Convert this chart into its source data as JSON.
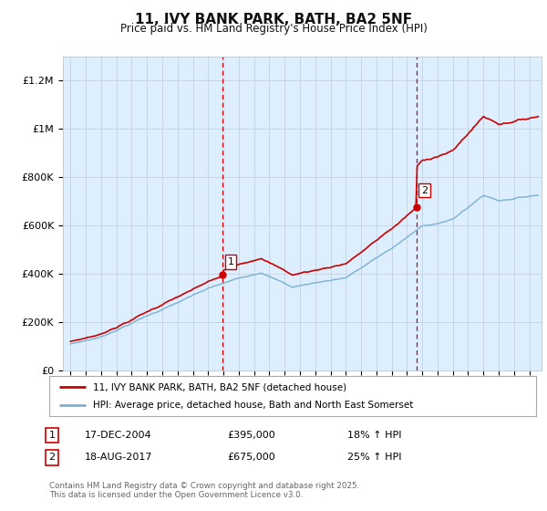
{
  "title1": "11, IVY BANK PARK, BATH, BA2 5NF",
  "title2": "Price paid vs. HM Land Registry's House Price Index (HPI)",
  "ylim": [
    0,
    1300000
  ],
  "yticks": [
    0,
    200000,
    400000,
    600000,
    800000,
    1000000,
    1200000
  ],
  "ytick_labels": [
    "£0",
    "£200K",
    "£400K",
    "£600K",
    "£800K",
    "£1M",
    "£1.2M"
  ],
  "xlim_left": 1994.5,
  "xlim_right": 2025.8,
  "sale1_year": 2004.96,
  "sale1_price": 395000,
  "sale2_year": 2017.63,
  "sale2_price": 675000,
  "legend_line1": "11, IVY BANK PARK, BATH, BA2 5NF (detached house)",
  "legend_line2": "HPI: Average price, detached house, Bath and North East Somerset",
  "annotation1_label": "1",
  "annotation1_date": "17-DEC-2004",
  "annotation1_price": "£395,000",
  "annotation1_hpi": "18% ↑ HPI",
  "annotation2_label": "2",
  "annotation2_date": "18-AUG-2017",
  "annotation2_price": "£675,000",
  "annotation2_hpi": "25% ↑ HPI",
  "footer": "Contains HM Land Registry data © Crown copyright and database right 2025.\nThis data is licensed under the Open Government Licence v3.0.",
  "line1_color": "#cc0000",
  "line2_color": "#7ab0d4",
  "vline_color": "#cc0000",
  "plot_bg": "#ddeeff",
  "grid_color": "#c0ccd8"
}
